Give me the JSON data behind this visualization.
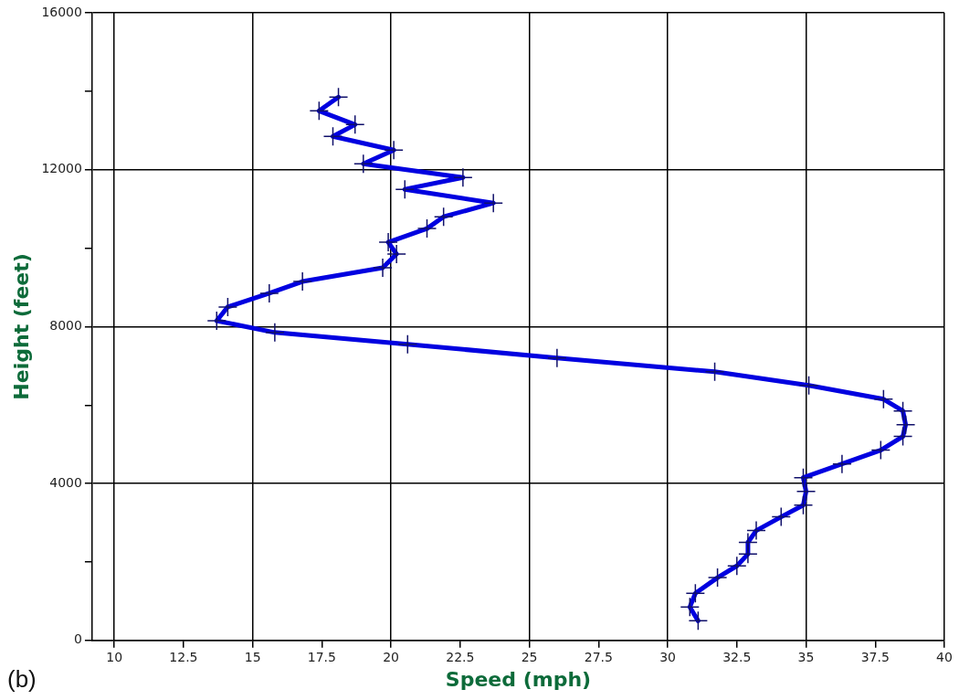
{
  "chart_data": {
    "type": "line",
    "xlabel": "Speed (mph)",
    "ylabel": "Height (feet)",
    "annotations": [
      "(b)"
    ],
    "x": [
      31.1,
      30.8,
      31.0,
      31.8,
      32.5,
      32.9,
      32.9,
      33.2,
      34.1,
      34.9,
      35.0,
      34.9,
      36.3,
      37.7,
      38.5,
      38.6,
      38.5,
      37.8,
      35.1,
      31.7,
      26.0,
      20.6,
      15.8,
      13.7,
      14.1,
      15.6,
      16.8,
      19.7,
      20.2,
      19.9,
      21.3,
      21.9,
      23.7,
      20.5,
      22.6,
      19.0,
      20.1,
      17.9,
      18.7,
      17.4,
      18.1
    ],
    "series": [
      {
        "color": "#0000e0",
        "values": [
          500,
          850,
          1200,
          1600,
          1900,
          2200,
          2500,
          2800,
          3150,
          3450,
          3800,
          4150,
          4500,
          4850,
          5200,
          5500,
          5850,
          6150,
          6500,
          6850,
          7200,
          7550,
          7850,
          8150,
          8500,
          8850,
          9150,
          9500,
          9850,
          10150,
          10500,
          10800,
          11150,
          11500,
          11800,
          12150,
          12500,
          12850,
          13150,
          13500,
          13850
        ]
      }
    ],
    "marker": "cross",
    "line_style": "solid",
    "grid": true,
    "legend": false,
    "xlim": [
      9.2,
      40
    ],
    "xticks": [
      10,
      12.5,
      15,
      17.5,
      20,
      22.5,
      25,
      27.5,
      30,
      32.5,
      35,
      37.5,
      40
    ],
    "ylim": [
      0,
      16000
    ],
    "yticks": [
      0,
      {
        "value": 2000,
        "label": null
      },
      4000,
      {
        "value": 6000,
        "label": null
      },
      8000,
      {
        "value": 10000,
        "label": null
      },
      12000,
      {
        "value": 14000,
        "label": null
      },
      16000
    ]
  }
}
